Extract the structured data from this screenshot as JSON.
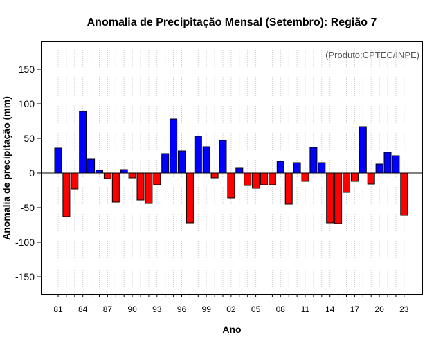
{
  "chart_data": {
    "type": "bar",
    "title": "Anomalia de Precipitação Mensal (Setembro): Região 7",
    "xlabel": "Ano",
    "ylabel": "Anomalia de precipitação (mm)",
    "annotation": "(Produto:CPTEC/INPE)",
    "ylim": [
      -175,
      190
    ],
    "yticks": [
      -150,
      -100,
      -50,
      0,
      50,
      100,
      150
    ],
    "grid": "vertical dotted",
    "positive_color": "#0000FF",
    "negative_color": "#FF0000",
    "categories": [
      "81",
      "82",
      "83",
      "84",
      "85",
      "86",
      "87",
      "88",
      "89",
      "90",
      "91",
      "92",
      "93",
      "94",
      "95",
      "96",
      "97",
      "98",
      "99",
      "00",
      "01",
      "02",
      "03",
      "04",
      "05",
      "06",
      "07",
      "08",
      "09",
      "10",
      "11",
      "12",
      "13",
      "14",
      "15",
      "16",
      "17",
      "18",
      "19",
      "20",
      "21",
      "22",
      "23"
    ],
    "xtick_labels": [
      "81",
      "84",
      "87",
      "90",
      "93",
      "96",
      "99",
      "02",
      "05",
      "08",
      "11",
      "14",
      "17",
      "20",
      "23"
    ],
    "values": [
      36,
      -63,
      -23,
      89,
      20,
      4,
      -8,
      -42,
      5,
      -7,
      -39,
      -44,
      -17,
      28,
      78,
      32,
      -72,
      53,
      38,
      -7,
      47,
      -36,
      7,
      -18,
      -22,
      -17,
      -17,
      17,
      -45,
      15,
      -12,
      37,
      15,
      -72,
      -73,
      -28,
      -12,
      67,
      -16,
      13,
      30,
      25,
      -61
    ]
  }
}
